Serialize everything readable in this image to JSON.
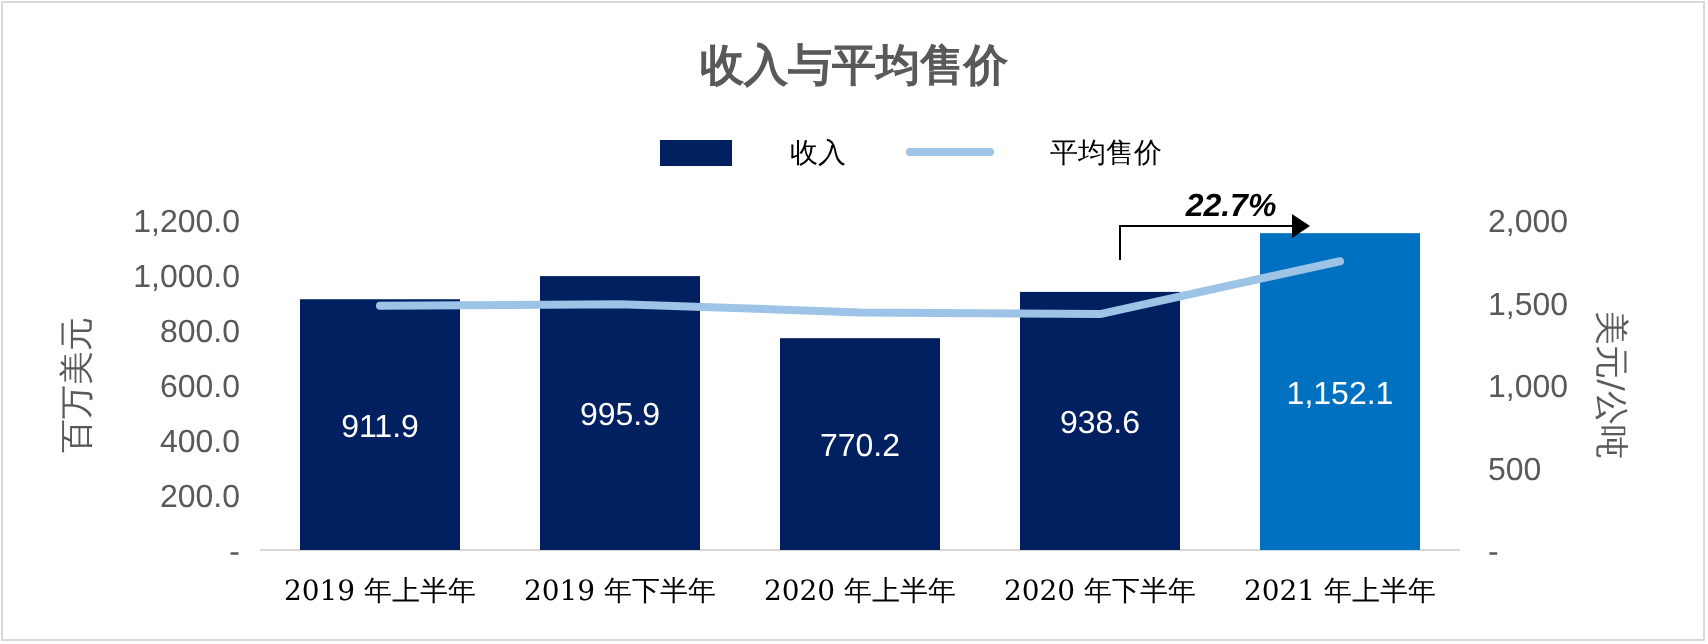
{
  "chart_data": {
    "type": "bar",
    "title": "收入与平均售价",
    "categories": [
      "2019 年上半年",
      "2019 年下半年",
      "2020 年上半年",
      "2020 年下半年",
      "2021 年上半年"
    ],
    "series": [
      {
        "name": "收入",
        "colors": [
          "#002060",
          "#002060",
          "#002060",
          "#002060",
          "#0070c0"
        ],
        "values": [
          911.9,
          995.9,
          770.2,
          938.6,
          1152.1
        ],
        "value_labels": [
          "911.9",
          "995.9",
          "770.2",
          "938.6",
          "1,152.1"
        ]
      },
      {
        "name": "平均售价",
        "type": "line",
        "axis": "y2",
        "color": "#9dc3e6",
        "values": [
          1480,
          1490,
          1440,
          1430,
          1750
        ]
      }
    ],
    "ylabel": "百万美元",
    "y2label": "美元/公吨",
    "ylim": [
      0,
      1200
    ],
    "yticks": [
      {
        "value": 0,
        "label": "-"
      },
      {
        "value": 200,
        "label": "200.0"
      },
      {
        "value": 400,
        "label": "400.0"
      },
      {
        "value": 600,
        "label": "600.0"
      },
      {
        "value": 800,
        "label": "800.0"
      },
      {
        "value": 1000,
        "label": "1,000.0"
      },
      {
        "value": 1200,
        "label": "1,200.0"
      }
    ],
    "y2lim": [
      0,
      2000
    ],
    "y2ticks": [
      {
        "value": 0,
        "label": "-"
      },
      500,
      {
        "value": 1000,
        "label": "1,000"
      },
      {
        "value": 1500,
        "label": "1,500"
      },
      {
        "value": 2000,
        "label": "2,000"
      }
    ],
    "annotations": [
      "22.7%"
    ],
    "legend": "top",
    "grid": false
  }
}
